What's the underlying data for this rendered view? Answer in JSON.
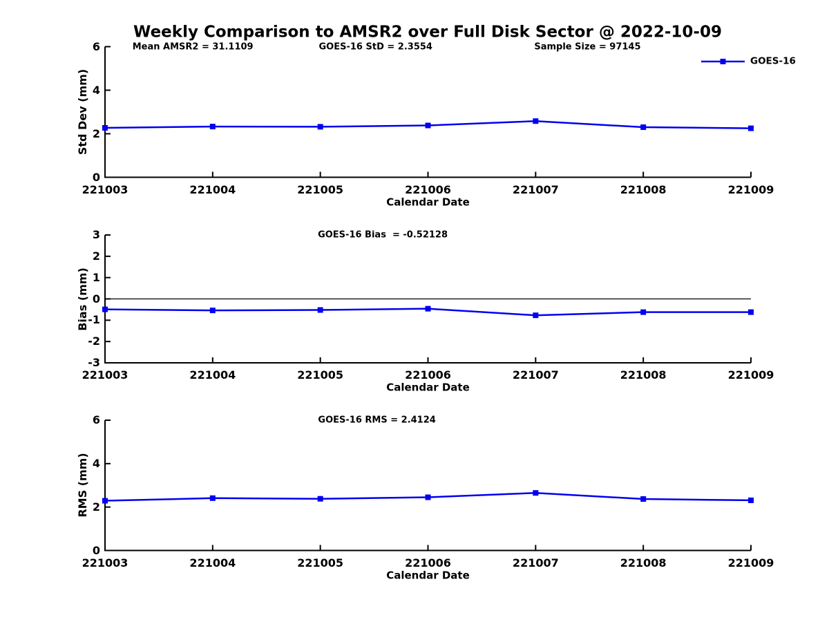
{
  "title": "Weekly Comparison to AMSR2 over Full Disk Sector @ 2022-10-09",
  "colors": {
    "line": "#0000EE",
    "axis": "#000000",
    "text": "#000000",
    "zero_line": "#000000",
    "background": "#FFFFFF"
  },
  "chart_data": [
    {
      "type": "line",
      "x": [
        "221003",
        "221004",
        "221005",
        "221006",
        "221007",
        "221008",
        "221009"
      ],
      "series": [
        {
          "name": "GOES-16",
          "values": [
            2.27,
            2.33,
            2.32,
            2.38,
            2.58,
            2.3,
            2.25
          ]
        }
      ],
      "title": "",
      "xlabel": "Calendar Date",
      "ylabel": "Std Dev (mm)",
      "ylim": [
        0,
        6
      ],
      "yticks": [
        0,
        2,
        4,
        6
      ],
      "grid": false,
      "marker": "square",
      "annotations": [
        "Mean AMSR2 = 31.1109",
        "GOES-16 StD = 2.3554",
        "Sample Size = 97145"
      ],
      "legend": {
        "label": "GOES-16",
        "position": "top-right"
      }
    },
    {
      "type": "line",
      "x": [
        "221003",
        "221004",
        "221005",
        "221006",
        "221007",
        "221008",
        "221009"
      ],
      "series": [
        {
          "name": "GOES-16",
          "values": [
            -0.49,
            -0.54,
            -0.52,
            -0.46,
            -0.77,
            -0.62,
            -0.62
          ]
        }
      ],
      "title": "",
      "xlabel": "Calendar Date",
      "ylabel": "Bias (mm)",
      "ylim": [
        -3,
        3
      ],
      "yticks": [
        -3,
        -2,
        -1,
        0,
        1,
        2,
        3
      ],
      "grid": false,
      "marker": "square",
      "zero_line": true,
      "annotations": [
        "GOES-16 Bias  = -0.52128"
      ]
    },
    {
      "type": "line",
      "x": [
        "221003",
        "221004",
        "221005",
        "221006",
        "221007",
        "221008",
        "221009"
      ],
      "series": [
        {
          "name": "GOES-16",
          "values": [
            2.29,
            2.41,
            2.38,
            2.45,
            2.65,
            2.37,
            2.31
          ]
        }
      ],
      "title": "",
      "xlabel": "Calendar Date",
      "ylabel": "RMS (mm)",
      "ylim": [
        0,
        6
      ],
      "yticks": [
        0,
        2,
        4,
        6
      ],
      "grid": false,
      "marker": "square",
      "annotations": [
        "GOES-16 RMS = 2.4124"
      ]
    }
  ]
}
